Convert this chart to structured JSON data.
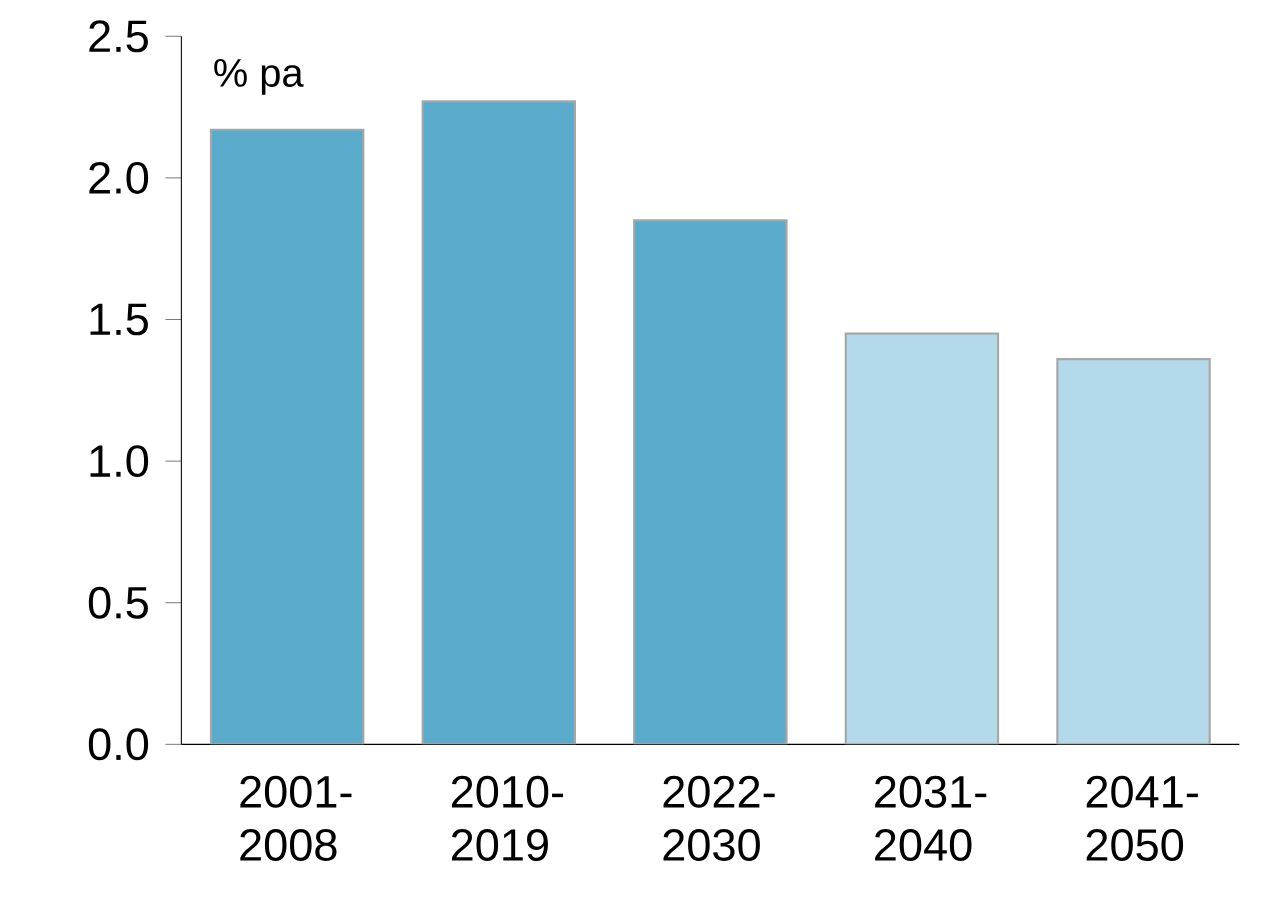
{
  "chart_data": {
    "type": "bar",
    "ylabel": "% pa",
    "categories": [
      "2001-2008",
      "2010-2019",
      "2022-2030",
      "2031-2040",
      "2041-2050"
    ],
    "values": [
      2.17,
      2.27,
      1.85,
      1.45,
      1.36
    ],
    "colors": [
      "#5aabcb",
      "#5aabcb",
      "#5aabcb",
      "#b4d9ea",
      "#b4d9ea"
    ],
    "ylim": [
      0,
      2.5
    ],
    "yticks": [
      {
        "value": 0,
        "label": "0.0"
      },
      {
        "value": 0.5,
        "label": "0.5"
      },
      {
        "value": 1,
        "label": "1.0"
      },
      {
        "value": 1.5,
        "label": "1.5"
      },
      {
        "value": 2,
        "label": "2.0"
      },
      {
        "value": 2.5,
        "label": "2.5"
      }
    ]
  }
}
